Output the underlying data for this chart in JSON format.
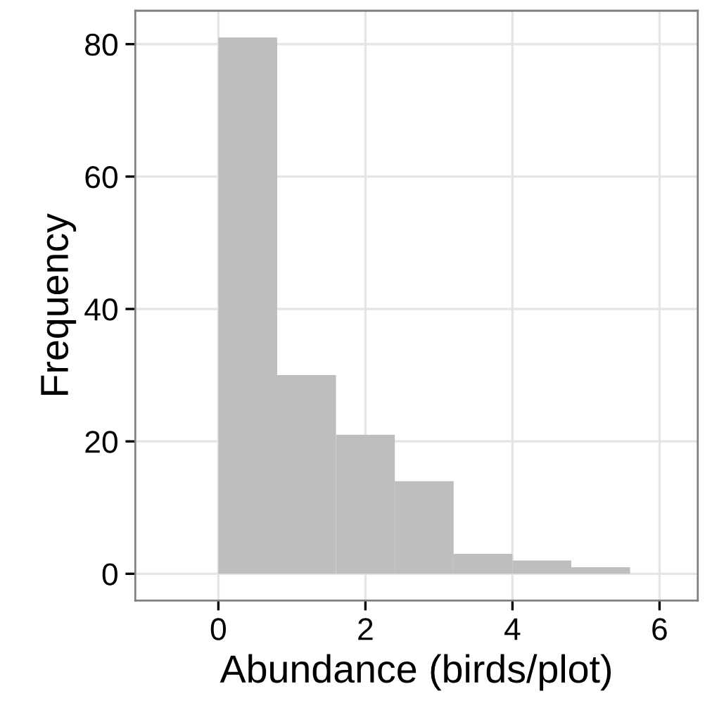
{
  "chart_data": {
    "type": "histogram",
    "xlabel": "Abundance (birds/plot)",
    "ylabel": "Frequency",
    "bins": [
      0,
      0.8,
      1.6,
      2.4,
      3.2,
      4.0,
      4.8,
      5.6
    ],
    "values": [
      81,
      30,
      21,
      14,
      3,
      2,
      1
    ],
    "color": "#bebebe",
    "xlim": [
      -1.13,
      6.52
    ],
    "ylim": [
      -4.05,
      85.05
    ],
    "xticks": [
      0,
      2,
      4,
      6
    ],
    "yticks": [
      0,
      20,
      40,
      60,
      80
    ],
    "grid": true
  }
}
